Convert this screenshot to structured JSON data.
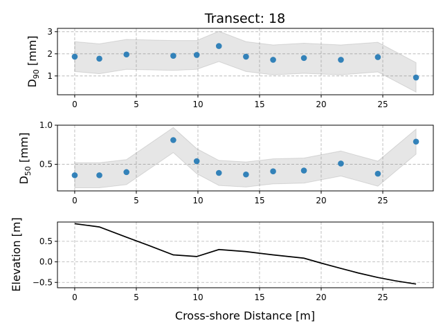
{
  "figure": {
    "title": "Transect: 18",
    "xlabel": "Cross-shore Distance [m]"
  },
  "chart_data": [
    {
      "type": "scatter",
      "ylabel_main": "D",
      "ylabel_sub": "90",
      "ylabel_unit": " [mm]",
      "xlim": [
        -1.4,
        29.1
      ],
      "ylim": [
        0.15,
        3.15
      ],
      "xticks": [
        0,
        5,
        10,
        15,
        20,
        25
      ],
      "yticks": [
        1,
        2,
        3
      ],
      "grid": true,
      "x": [
        0.0,
        2.0,
        4.2,
        8.0,
        9.9,
        11.7,
        13.9,
        16.1,
        18.6,
        21.6,
        24.6,
        27.7
      ],
      "y": [
        1.87,
        1.78,
        1.97,
        1.91,
        1.95,
        2.35,
        1.87,
        1.73,
        1.81,
        1.73,
        1.85,
        0.93
      ],
      "band_upper": [
        2.55,
        2.45,
        2.65,
        2.6,
        2.6,
        3.02,
        2.55,
        2.4,
        2.48,
        2.4,
        2.52,
        1.6
      ],
      "band_lower": [
        1.2,
        1.1,
        1.3,
        1.25,
        1.3,
        1.65,
        1.2,
        1.05,
        1.12,
        1.05,
        1.18,
        0.27
      ]
    },
    {
      "type": "scatter",
      "ylabel_main": "D",
      "ylabel_sub": "50",
      "ylabel_unit": " [mm]",
      "xlim": [
        -1.4,
        29.1
      ],
      "ylim": [
        0.16,
        1.0
      ],
      "xticks": [
        0,
        5,
        10,
        15,
        20,
        25
      ],
      "yticks": [
        0.5,
        1.0
      ],
      "ytick_labels": [
        "0.5",
        "1.0"
      ],
      "grid": true,
      "x": [
        0.0,
        2.0,
        4.2,
        8.0,
        9.9,
        11.7,
        13.9,
        16.1,
        18.6,
        21.6,
        24.6,
        27.7
      ],
      "y": [
        0.36,
        0.36,
        0.4,
        0.81,
        0.54,
        0.39,
        0.37,
        0.41,
        0.42,
        0.51,
        0.38,
        0.79
      ],
      "band_upper": [
        0.52,
        0.52,
        0.56,
        0.97,
        0.7,
        0.55,
        0.53,
        0.57,
        0.58,
        0.67,
        0.54,
        0.95
      ],
      "band_lower": [
        0.2,
        0.2,
        0.24,
        0.65,
        0.38,
        0.23,
        0.21,
        0.25,
        0.26,
        0.35,
        0.22,
        0.63
      ]
    },
    {
      "type": "line",
      "ylabel": "Elevation [m]",
      "xlim": [
        -1.4,
        29.1
      ],
      "ylim": [
        -0.63,
        0.97
      ],
      "xticks": [
        0,
        5,
        10,
        15,
        20,
        25
      ],
      "yticks": [
        -0.5,
        0.0,
        0.5
      ],
      "ytick_labels": [
        "−0.5",
        "0.0",
        "0.5"
      ],
      "grid": true,
      "x": [
        0.0,
        2.0,
        4.2,
        6.0,
        8.0,
        9.9,
        11.7,
        13.9,
        16.1,
        18.6,
        20.0,
        21.6,
        23.0,
        24.6,
        26.0,
        27.7
      ],
      "y": [
        0.93,
        0.85,
        0.6,
        0.4,
        0.17,
        0.13,
        0.3,
        0.25,
        0.17,
        0.09,
        -0.03,
        -0.16,
        -0.27,
        -0.38,
        -0.46,
        -0.54
      ],
      "color": "#000000"
    }
  ]
}
